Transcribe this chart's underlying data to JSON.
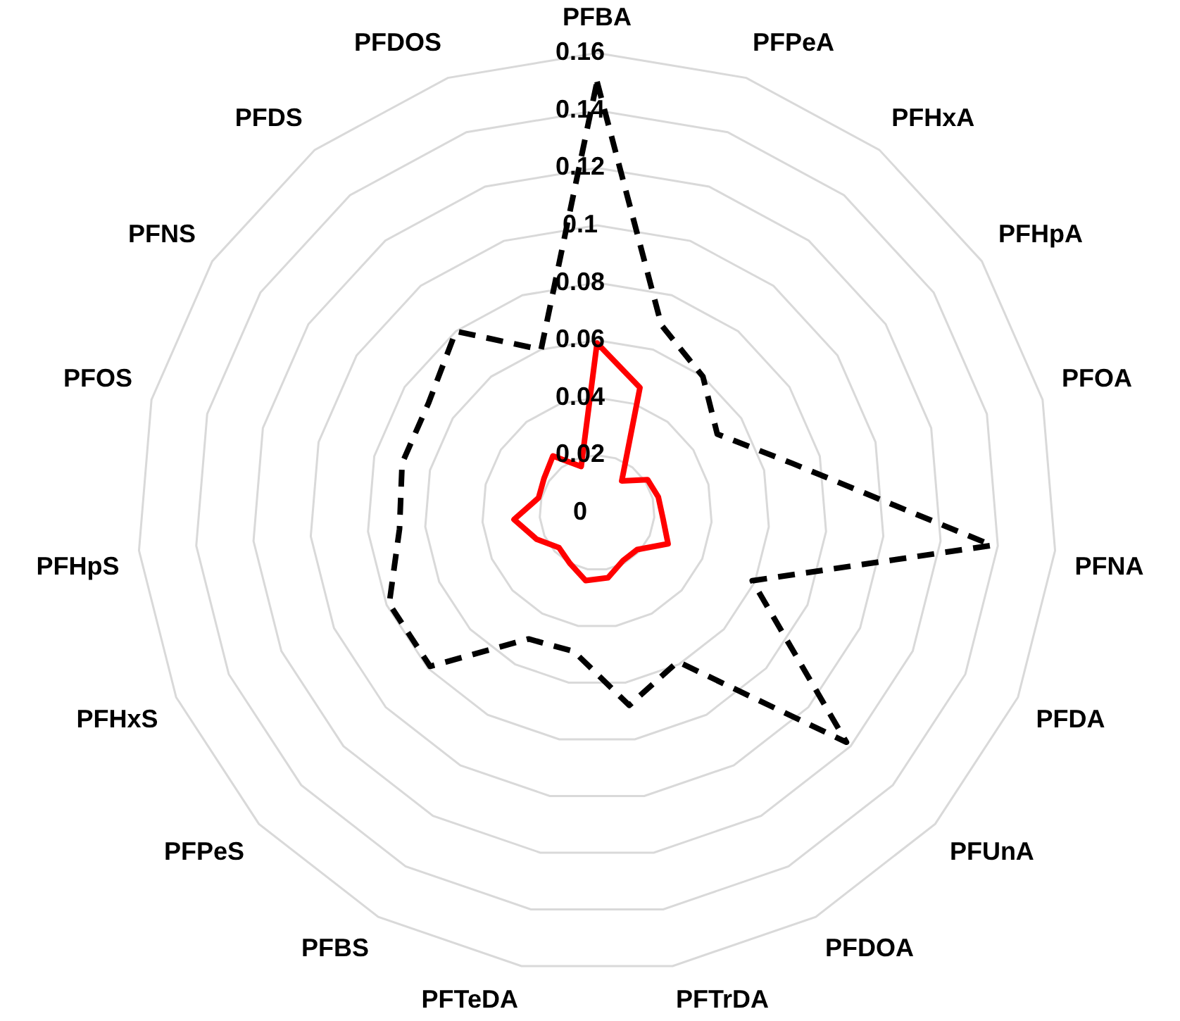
{
  "chart_data": {
    "type": "radar",
    "categories": [
      "PFBA",
      "PFPeA",
      "PFHxA",
      "PFHpA",
      "PFOA",
      "PFNA",
      "PFDA",
      "PFUnA",
      "PFDOA",
      "PFTrDA",
      "PFTeDA",
      "PFBS",
      "PFPeS",
      "PFHxS",
      "PFHpS",
      "PFOS",
      "PFNS",
      "PFDS",
      "PFDOS"
    ],
    "series": [
      {
        "color": "#000000",
        "line_style": "dashed",
        "values": [
          0.15,
          0.069,
          0.06,
          0.05,
          0.07,
          0.138,
          0.059,
          0.118,
          0.059,
          0.068,
          0.049,
          0.05,
          0.079,
          0.079,
          0.069,
          0.07,
          0.07,
          0.08,
          0.06
        ]
      },
      {
        "color": "#ff0000",
        "line_style": "solid",
        "values": [
          0.059,
          0.046,
          0.014,
          0.021,
          0.022,
          0.023,
          0.027,
          0.019,
          0.019,
          0.023,
          0.024,
          0.02,
          0.018,
          0.023,
          0.029,
          0.021,
          0.022,
          0.025,
          0.017
        ]
      }
    ],
    "ylim": [
      0,
      0.16
    ],
    "yticks": [
      0,
      0.02,
      0.04,
      0.06,
      0.08,
      0.1,
      0.12,
      0.14,
      0.16
    ],
    "grid": true,
    "legend": false,
    "marker": "none"
  }
}
